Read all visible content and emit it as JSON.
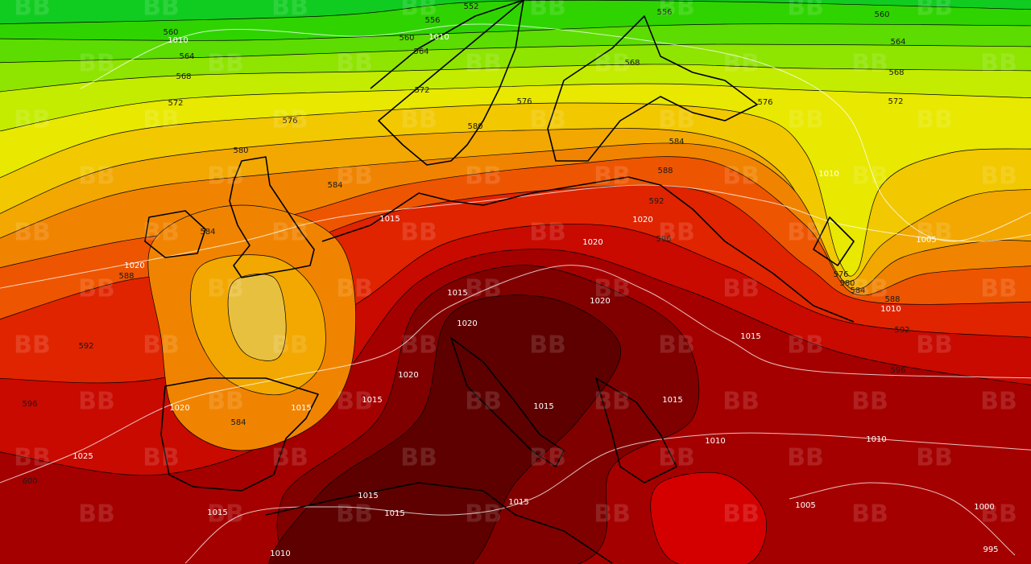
{
  "height_labels": [
    552,
    556,
    556,
    560,
    560,
    560,
    564,
    564,
    564,
    568,
    568,
    568,
    572,
    572,
    572,
    576,
    576,
    576,
    580,
    584,
    584,
    588,
    592,
    596,
    584,
    588,
    592,
    596,
    600,
    584,
    576,
    580,
    584,
    588,
    592,
    596,
    580
  ],
  "pressure_labels": [
    1010,
    1010,
    1015,
    1020,
    1020,
    1020,
    1015,
    1020,
    1020,
    1020,
    1015,
    1015,
    1015,
    1015,
    1015,
    1020,
    1025,
    1010,
    1010,
    1015,
    1015,
    1015,
    1015,
    1005,
    1005,
    1000,
    995,
    1010,
    1010,
    1010
  ],
  "watermark": "BB"
}
